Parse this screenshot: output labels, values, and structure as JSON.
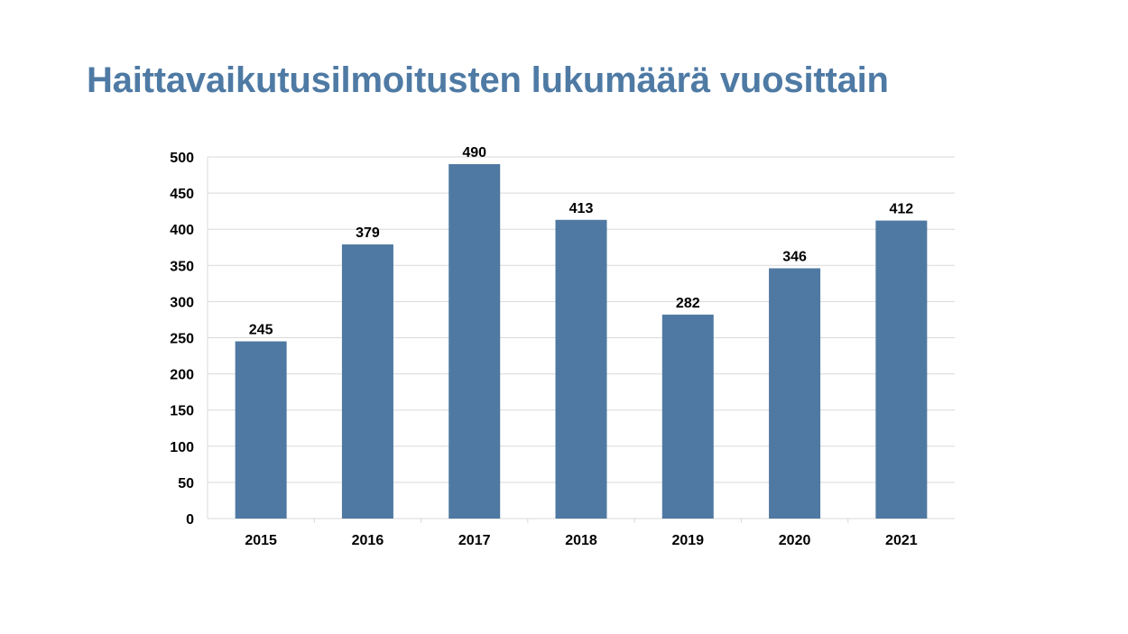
{
  "title": "Haittavaikutusilmoitusten lukumäärä vuosittain",
  "colors": {
    "title": "#4e7aa4",
    "bar": "#4f79a2",
    "grid": "#d9d9d9",
    "axis": "#d9d9d9",
    "text": "#000000"
  },
  "chart_data": {
    "type": "bar",
    "categories": [
      "2015",
      "2016",
      "2017",
      "2018",
      "2019",
      "2020",
      "2021"
    ],
    "values": [
      245,
      379,
      490,
      413,
      282,
      346,
      412
    ],
    "data_labels": [
      "245",
      "379",
      "490",
      "413",
      "282",
      "346",
      "412"
    ],
    "title": "",
    "xlabel": "",
    "ylabel": "",
    "ylim": [
      0,
      500
    ],
    "yticks": [
      0,
      50,
      100,
      150,
      200,
      250,
      300,
      350,
      400,
      450,
      500
    ],
    "ytick_labels": [
      "0",
      "50",
      "100",
      "150",
      "200",
      "250",
      "300",
      "350",
      "400",
      "450",
      "500"
    ],
    "grid": true,
    "legend": "none"
  }
}
